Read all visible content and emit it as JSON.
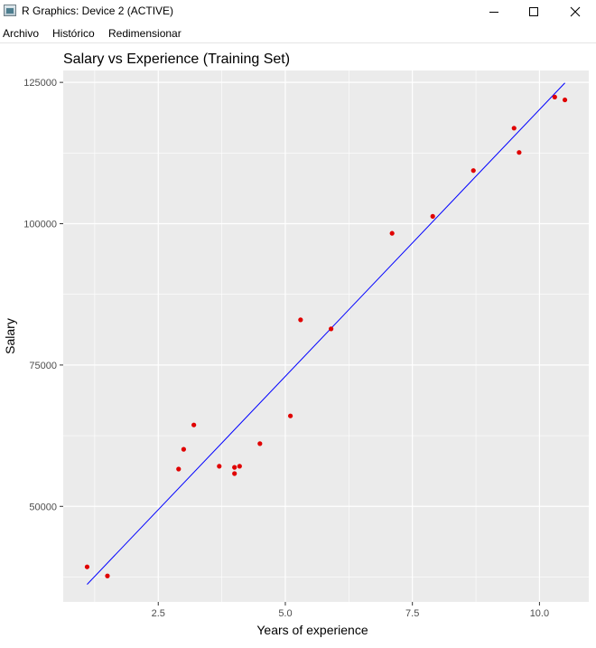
{
  "window": {
    "title": "R Graphics: Device 2 (ACTIVE)",
    "buttons": {
      "minimize": "minimize-icon",
      "maximize": "maximize-icon",
      "close": "close-icon"
    }
  },
  "menu": [
    "Archivo",
    "Histórico",
    "Redimensionar"
  ],
  "colors": {
    "panel_bg": "#EBEBEB",
    "grid": "#FFFFFF",
    "point": "#E00000",
    "line": "#0000FF"
  },
  "chart_data": {
    "type": "scatter",
    "title": "Salary vs Experience (Training Set)",
    "xlabel": "Years of experience",
    "ylabel": "Salary",
    "xlim": [
      0.63,
      10.97
    ],
    "ylim": [
      33100,
      127100
    ],
    "x_ticks": [
      2.5,
      5.0,
      7.5,
      10.0
    ],
    "x_tick_labels": [
      "2.5",
      "5.0",
      "7.5",
      "10.0"
    ],
    "y_ticks": [
      50000,
      75000,
      100000,
      125000
    ],
    "y_tick_labels": [
      "50000",
      "75000",
      "100000",
      "125000"
    ],
    "grid": true,
    "series": [
      {
        "kind": "points",
        "x": [
          1.1,
          1.5,
          2.9,
          3.0,
          3.2,
          3.7,
          4.0,
          4.0,
          4.1,
          4.5,
          5.1,
          5.3,
          5.9,
          7.1,
          7.9,
          8.7,
          9.5,
          9.6,
          10.3,
          10.5
        ],
        "y": [
          39300,
          37700,
          56600,
          60100,
          64400,
          57100,
          55800,
          56900,
          57100,
          61100,
          66000,
          83000,
          81400,
          98300,
          101300,
          109400,
          116900,
          112600,
          122400,
          121900
        ]
      },
      {
        "kind": "line",
        "x": [
          1.1,
          10.5
        ],
        "y": [
          36200,
          124900
        ]
      }
    ]
  }
}
